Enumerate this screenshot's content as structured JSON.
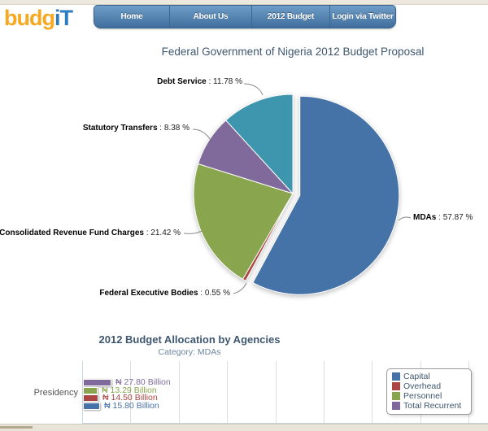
{
  "header": {
    "logo": {
      "part1": "budg",
      "part2": "iT",
      "color1": "#f6a821",
      "color2": "#2c7bc0"
    },
    "nav": {
      "items": [
        {
          "label": "Home"
        },
        {
          "label": "About Us"
        },
        {
          "label": "2012 Budget"
        },
        {
          "label": "Login via Twitter"
        }
      ]
    }
  },
  "chart_data": [
    {
      "type": "pie",
      "title": "Federal Government of Nigeria 2012 Budget Proposal",
      "sep": " : ",
      "start": "top",
      "direction": "clockwise",
      "slices": [
        {
          "label": "MDAs",
          "value": 57.87,
          "pct_text": "57.87 %",
          "color": "#4572A7",
          "sliced": true
        },
        {
          "label": "Federal Executive Bodies",
          "value": 0.55,
          "pct_text": "0.55 %",
          "color": "#AA4643",
          "sliced": false
        },
        {
          "label": "Consolidated Revenue Fund Charges",
          "value": 21.42,
          "pct_text": "21.42 %",
          "color": "#89A54E",
          "sliced": false
        },
        {
          "label": "Statutory Transfers",
          "value": 8.38,
          "pct_text": "8.38 %",
          "color": "#80699B",
          "sliced": false
        },
        {
          "label": "Debt Service",
          "value": 11.78,
          "pct_text": "11.78 %",
          "color": "#3D96AE",
          "sliced": false
        }
      ]
    },
    {
      "type": "bar",
      "title": "2012 Budget Allocation by Agencies",
      "subtitle": "Category: MDAs",
      "categories": [
        "Presidency"
      ],
      "grid": true,
      "legend_position": "right",
      "series": [
        {
          "name": "Capital",
          "color": "#4572A7",
          "values": [
            15.8
          ],
          "value_label": "₦ 15.80 Billion"
        },
        {
          "name": "Overhead",
          "color": "#AA4643",
          "values": [
            14.5
          ],
          "value_label": "₦ 14.50 Billion"
        },
        {
          "name": "Personnel",
          "color": "#89A54E",
          "values": [
            13.29
          ],
          "value_label": "₦ 13.29 Billion"
        },
        {
          "name": "Total Recurrent",
          "color": "#80699B",
          "values": [
            27.8
          ],
          "value_label": "₦ 27.80 Billion"
        }
      ],
      "bar_order_top_to_bottom": [
        3,
        2,
        1,
        0
      ]
    }
  ]
}
